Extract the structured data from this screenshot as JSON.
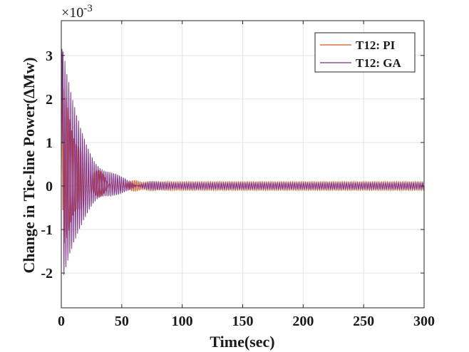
{
  "chart_data": {
    "type": "line",
    "xlabel": "Time(sec)",
    "ylabel": "Change in Tie-line Power(ΔMw)",
    "exponent_label": "×10",
    "exponent_power": "-3",
    "xlim": [
      0,
      300
    ],
    "ylim": [
      -2.8,
      3.8
    ],
    "xticks": [
      "0",
      "50",
      "100",
      "150",
      "200",
      "250",
      "300"
    ],
    "yticks": [
      "-2",
      "-1",
      "0",
      "1",
      "2",
      "3"
    ],
    "grid": true,
    "legend_position": "top-right",
    "series": [
      {
        "name": "T12: PI",
        "color": "#d9541a",
        "peak_max": 2.5,
        "peak_min": -1.5,
        "settled_amplitude": 0.1
      },
      {
        "name": "T12: GA",
        "color": "#7e2f8e",
        "peak_max": 3.5,
        "peak_min": -2.4,
        "settled_amplitude": 0.07
      }
    ]
  }
}
